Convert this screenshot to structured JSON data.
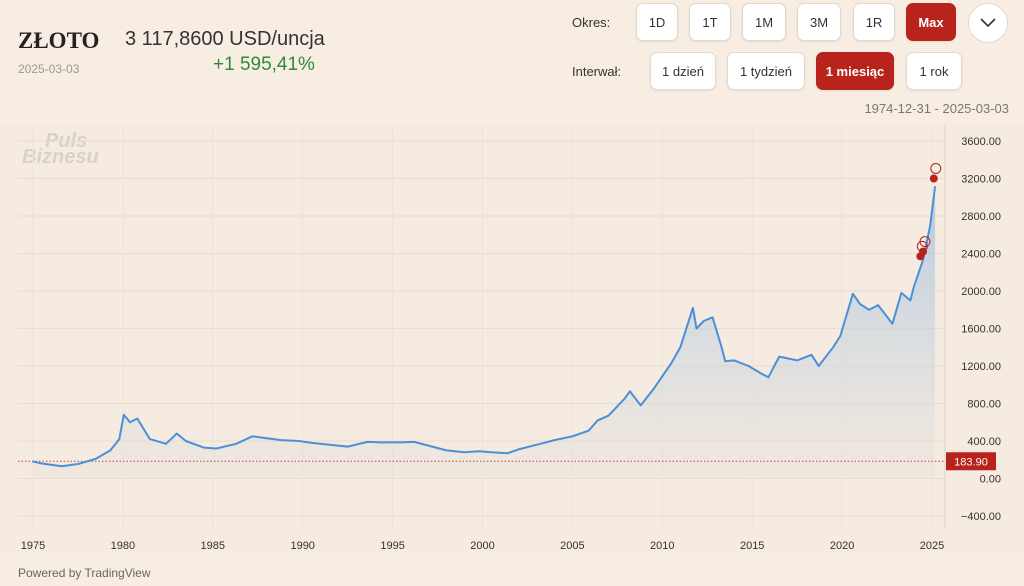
{
  "header": {
    "title": "ZŁOTO",
    "price": "3 117,8600 USD/uncja",
    "date": "2025-03-03",
    "change": "+1 595,41%"
  },
  "controls": {
    "okres_label": "Okres:",
    "okres_options": [
      "1D",
      "1T",
      "1M",
      "3M",
      "1R",
      "Max"
    ],
    "okres_active": "Max",
    "interwal_label": "Interwał:",
    "interwal_options": [
      "1 dzień",
      "1 tydzień",
      "1 miesiąc",
      "1 rok"
    ],
    "interwal_active": "1 miesiąc",
    "range": "1974-12-31 - 2025-03-03"
  },
  "watermark": [
    "Puls",
    "Biznesu"
  ],
  "footer": {
    "powered": "Powered by TradingView"
  },
  "colors": {
    "accent": "#b8231c",
    "line": "#4a90d9",
    "up": "#2e8b3a"
  },
  "chart_data": {
    "type": "area",
    "title": "",
    "xlabel": "",
    "ylabel": "",
    "ylim": [
      -500,
      3800
    ],
    "xlim": [
      1974.6,
      2026.2
    ],
    "xticks": [
      1975,
      1980,
      1985,
      1990,
      1995,
      2000,
      2005,
      2010,
      2015,
      2020,
      2025
    ],
    "yticks": [
      -400,
      0,
      400,
      800,
      1200,
      1600,
      2000,
      2400,
      2800,
      3200,
      3600
    ],
    "ytick_labels": [
      "−400.00",
      "0.00",
      "400.00",
      "800.00",
      "1200.00",
      "1600.00",
      "2000.00",
      "2400.00",
      "2800.00",
      "3200.00",
      "3600.00"
    ],
    "baseline": {
      "value": 183.9,
      "label": "183.90"
    },
    "grid": true,
    "series": [
      {
        "name": "ZŁOTO",
        "x": [
          1974.95,
          1975.5,
          1976.6,
          1977.5,
          1978.5,
          1979.3,
          1979.8,
          1980.05,
          1980.4,
          1980.8,
          1981.5,
          1982.4,
          1983.0,
          1983.5,
          1984.5,
          1985.2,
          1986.3,
          1987.2,
          1988.0,
          1988.8,
          1989.8,
          1990.5,
          1991.5,
          1992.5,
          1993.6,
          1994.5,
          1995.5,
          1996.2,
          1997.2,
          1998.0,
          1999.0,
          1999.8,
          2000.5,
          2001.4,
          2002.0,
          2003.0,
          2004.0,
          2005.0,
          2005.9,
          2006.4,
          2007.0,
          2007.9,
          2008.2,
          2008.8,
          2009.5,
          2010.5,
          2011.0,
          2011.7,
          2011.9,
          2012.3,
          2012.8,
          2013.3,
          2013.5,
          2014.0,
          2014.8,
          2015.5,
          2015.9,
          2016.5,
          2017.5,
          2018.3,
          2018.7,
          2019.5,
          2019.9,
          2020.6,
          2021.0,
          2021.5,
          2022.0,
          2022.8,
          2023.3,
          2023.8,
          2024.0,
          2024.5,
          2024.9,
          2025.17
        ],
        "values": [
          184,
          160,
          130,
          155,
          210,
          300,
          420,
          680,
          600,
          640,
          420,
          370,
          480,
          400,
          330,
          320,
          370,
          450,
          430,
          410,
          400,
          380,
          360,
          340,
          390,
          385,
          385,
          390,
          340,
          300,
          280,
          290,
          280,
          270,
          310,
          360,
          410,
          450,
          510,
          620,
          670,
          850,
          930,
          780,
          950,
          1230,
          1400,
          1820,
          1600,
          1680,
          1720,
          1400,
          1250,
          1260,
          1200,
          1120,
          1080,
          1300,
          1260,
          1320,
          1200,
          1400,
          1520,
          1970,
          1860,
          1800,
          1850,
          1650,
          1980,
          1900,
          2050,
          2330,
          2700,
          3117.86
        ]
      }
    ],
    "markers": [
      {
        "x": 2024.35,
        "value": 2370
      },
      {
        "x": 2024.5,
        "value": 2420
      },
      {
        "x": 2025.1,
        "value": 3200
      }
    ]
  }
}
